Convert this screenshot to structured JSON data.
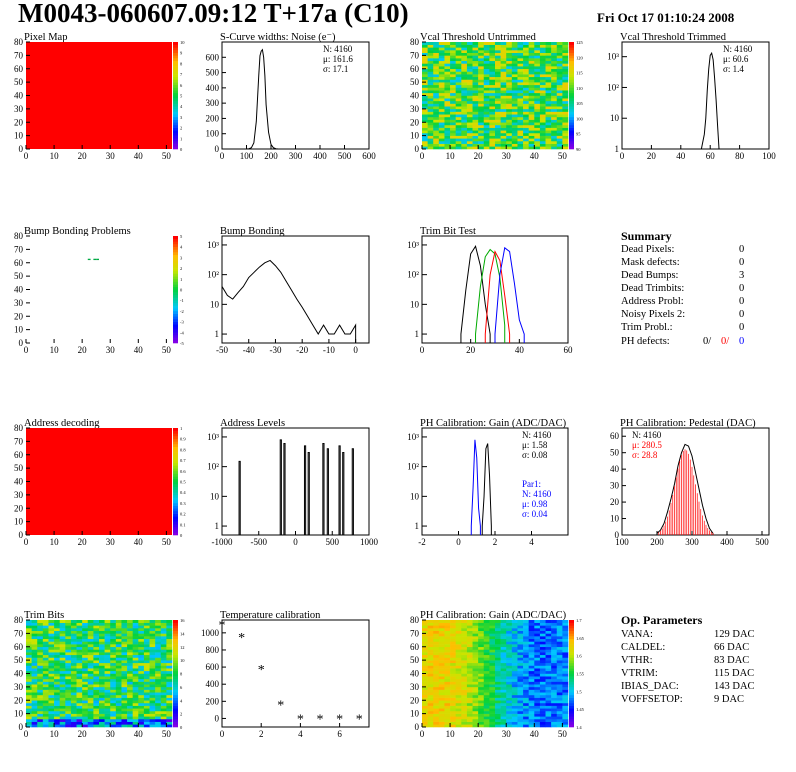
{
  "header": {
    "title": "M0043-060607.09:12 T+17a (C10)",
    "date": "Fri Oct 17 01:10:24 2008"
  },
  "summary": {
    "title": "Summary",
    "rows": [
      {
        "label": "Dead Pixels:",
        "value": "0"
      },
      {
        "label": "Mask defects:",
        "value": "0"
      },
      {
        "label": "Dead Bumps:",
        "value": "3"
      },
      {
        "label": "Dead Trimbits:",
        "value": "0"
      },
      {
        "label": "Address Probl:",
        "value": "0"
      },
      {
        "label": "Noisy Pixels 2:",
        "value": "0"
      },
      {
        "label": "Trim Probl.:",
        "value": "0"
      }
    ],
    "ph_label": "PH defects:",
    "ph_values": [
      "0/",
      "0/",
      "0"
    ]
  },
  "op_parameters": {
    "title": "Op. Parameters",
    "rows": [
      {
        "label": "VANA:",
        "value": "129 DAC"
      },
      {
        "label": "CALDEL:",
        "value": "66 DAC"
      },
      {
        "label": "VTHR:",
        "value": "83 DAC"
      },
      {
        "label": "VTRIM:",
        "value": "115 DAC"
      },
      {
        "label": "IBIAS_DAC:",
        "value": "143 DAC"
      },
      {
        "label": "VOFFSETOP:",
        "value": "9 DAC"
      }
    ]
  },
  "chart_data": [
    {
      "id": "pixel-map",
      "type": "heatmap",
      "title": "Pixel Map",
      "pattern": "uniform",
      "fill": "#ff0000",
      "xlim": [
        0,
        52
      ],
      "ylim": [
        0,
        80
      ],
      "xticks": [
        0,
        10,
        20,
        30,
        40,
        50
      ],
      "yticks": [
        0,
        10,
        20,
        30,
        40,
        50,
        60,
        70,
        80
      ],
      "zticks": [
        "0",
        "1",
        "2",
        "3",
        "4",
        "5",
        "6",
        "7",
        "8",
        "9",
        "10"
      ],
      "palette": "root"
    },
    {
      "id": "scurve",
      "type": "bar",
      "title": "S-Curve widths: Noise (e⁻)",
      "xlim": [
        0,
        600
      ],
      "ylim": [
        0,
        700
      ],
      "xticks": [
        0,
        100,
        200,
        300,
        400,
        500,
        600
      ],
      "yticks": [
        0,
        100,
        200,
        300,
        400,
        500,
        600
      ],
      "ylog": false,
      "stats": [
        {
          "text": "N: 4160",
          "color": "#000"
        },
        {
          "text": "μ: 161.6",
          "color": "#000"
        },
        {
          "text": "σ: 17.1",
          "color": "#000"
        }
      ],
      "series": [
        {
          "color": "#000",
          "points": [
            [
              100,
              0
            ],
            [
              110,
              2
            ],
            [
              120,
              8
            ],
            [
              130,
              40
            ],
            [
              140,
              180
            ],
            [
              150,
              480
            ],
            [
              155,
              610
            ],
            [
              160,
              640
            ],
            [
              165,
              650
            ],
            [
              170,
              600
            ],
            [
              175,
              480
            ],
            [
              180,
              290
            ],
            [
              190,
              110
            ],
            [
              200,
              30
            ],
            [
              210,
              8
            ],
            [
              220,
              2
            ],
            [
              230,
              0
            ]
          ]
        }
      ]
    },
    {
      "id": "vcal-untrimmed",
      "type": "heatmap",
      "title": "Vcal Threshold Untrimmed",
      "pattern": "noise",
      "xlim": [
        0,
        52
      ],
      "ylim": [
        0,
        80
      ],
      "xticks": [
        0,
        10,
        20,
        30,
        40,
        50
      ],
      "yticks": [
        0,
        10,
        20,
        30,
        40,
        50,
        60,
        70,
        80
      ],
      "zticks": [
        "90",
        "95",
        "100",
        "105",
        "110",
        "115",
        "120",
        "125"
      ],
      "palette": "root"
    },
    {
      "id": "vcal-trimmed",
      "type": "bar",
      "title": "Vcal Threshold Trimmed",
      "xlim": [
        0,
        100
      ],
      "ylim": [
        1,
        3000
      ],
      "xticks": [
        0,
        20,
        40,
        60,
        80,
        100
      ],
      "ylog": true,
      "yticklabels": [
        "1",
        "10",
        "10²",
        "10³"
      ],
      "stats": [
        {
          "text": "N: 4160",
          "color": "#000"
        },
        {
          "text": "μ: 60.6",
          "color": "#000"
        },
        {
          "text": "σ:  1.4",
          "color": "#000"
        }
      ],
      "series": [
        {
          "color": "#000",
          "points": [
            [
              54,
              1
            ],
            [
              56,
              3
            ],
            [
              57,
              10
            ],
            [
              58,
              80
            ],
            [
              59,
              400
            ],
            [
              60,
              1100
            ],
            [
              61,
              1300
            ],
            [
              62,
              800
            ],
            [
              63,
              200
            ],
            [
              64,
              40
            ],
            [
              65,
              6
            ],
            [
              66,
              1
            ]
          ]
        }
      ]
    },
    {
      "id": "bump-problems",
      "type": "heatmap",
      "title": "Bump Bonding Problems",
      "pattern": "sparse",
      "xlim": [
        0,
        52
      ],
      "ylim": [
        0,
        80
      ],
      "xticks": [
        0,
        10,
        20,
        30,
        40,
        50
      ],
      "yticks": [
        0,
        10,
        20,
        30,
        40,
        50,
        60,
        70,
        80
      ],
      "zticks": [
        "-5",
        "-4",
        "-3",
        "-2",
        "-1",
        "0",
        "1",
        "2",
        "3",
        "4",
        "5"
      ],
      "palette": "root"
    },
    {
      "id": "bump-bonding",
      "type": "bar",
      "title": "Bump Bonding",
      "xlim": [
        -50,
        5
      ],
      "ylim": [
        0.5,
        2000
      ],
      "xticks": [
        -50,
        -40,
        -30,
        -20,
        -10,
        0
      ],
      "ylog": true,
      "yticklabels": [
        "1",
        "10",
        "10²",
        "10³"
      ],
      "series": [
        {
          "color": "#000",
          "points": [
            [
              -50,
              40
            ],
            [
              -48,
              20
            ],
            [
              -46,
              15
            ],
            [
              -44,
              25
            ],
            [
              -42,
              40
            ],
            [
              -40,
              80
            ],
            [
              -38,
              120
            ],
            [
              -36,
              180
            ],
            [
              -34,
              250
            ],
            [
              -32,
              300
            ],
            [
              -30,
              200
            ],
            [
              -28,
              120
            ],
            [
              -26,
              60
            ],
            [
              -24,
              30
            ],
            [
              -22,
              15
            ],
            [
              -20,
              8
            ],
            [
              -18,
              4
            ],
            [
              -16,
              2
            ],
            [
              -14,
              1
            ],
            [
              -12,
              2
            ],
            [
              -10,
              1
            ],
            [
              -8,
              1
            ],
            [
              -6,
              2
            ],
            [
              -4,
              1
            ],
            [
              -2,
              1
            ],
            [
              0,
              2
            ]
          ]
        }
      ]
    },
    {
      "id": "trim-bit-test",
      "type": "bar",
      "title": "Trim Bit Test",
      "xlim": [
        0,
        60
      ],
      "ylim": [
        0.5,
        2000
      ],
      "xticks": [
        0,
        20,
        40,
        60
      ],
      "ylog": true,
      "yticklabels": [
        "1",
        "10",
        "10²",
        "10³"
      ],
      "series": [
        {
          "color": "#000",
          "points": [
            [
              16,
              1
            ],
            [
              18,
              30
            ],
            [
              20,
              500
            ],
            [
              22,
              900
            ],
            [
              24,
              200
            ],
            [
              26,
              10
            ],
            [
              28,
              1
            ]
          ]
        },
        {
          "color": "#00aa00",
          "points": [
            [
              22,
              1
            ],
            [
              24,
              40
            ],
            [
              26,
              400
            ],
            [
              28,
              700
            ],
            [
              30,
              500
            ],
            [
              32,
              80
            ],
            [
              34,
              2
            ]
          ]
        },
        {
          "color": "#ff0000",
          "points": [
            [
              26,
              1
            ],
            [
              28,
              100
            ],
            [
              30,
              600
            ],
            [
              32,
              300
            ],
            [
              34,
              20
            ],
            [
              36,
              1
            ]
          ]
        },
        {
          "color": "#0000ff",
          "points": [
            [
              30,
              1
            ],
            [
              32,
              100
            ],
            [
              34,
              800
            ],
            [
              36,
              600
            ],
            [
              38,
              50
            ],
            [
              40,
              3
            ],
            [
              42,
              1
            ]
          ]
        }
      ]
    },
    {
      "id": "address-decoding",
      "type": "heatmap",
      "title": "Address decoding",
      "pattern": "uniform",
      "fill": "#ff0000",
      "xlim": [
        0,
        52
      ],
      "ylim": [
        0,
        80
      ],
      "xticks": [
        0,
        10,
        20,
        30,
        40,
        50
      ],
      "yticks": [
        0,
        10,
        20,
        30,
        40,
        50,
        60,
        70,
        80
      ],
      "zticks": [
        "0",
        "0.1",
        "0.2",
        "0.3",
        "0.4",
        "0.5",
        "0.6",
        "0.7",
        "0.8",
        "0.9",
        "1"
      ],
      "palette": "root"
    },
    {
      "id": "address-levels",
      "type": "bar",
      "title": "Address Levels",
      "xlim": [
        -1000,
        1000
      ],
      "ylim": [
        0.5,
        2000
      ],
      "xticks": [
        -1000,
        -500,
        0,
        500,
        1000
      ],
      "ylog": true,
      "yticklabels": [
        "1",
        "10",
        "10²",
        "10³"
      ],
      "series": [
        {
          "color": "#000",
          "spikes": [
            [
              -760,
              150
            ],
            [
              -200,
              800
            ],
            [
              -150,
              600
            ],
            [
              130,
              500
            ],
            [
              180,
              300
            ],
            [
              380,
              600
            ],
            [
              440,
              400
            ],
            [
              600,
              500
            ],
            [
              650,
              300
            ],
            [
              780,
              400
            ]
          ]
        }
      ]
    },
    {
      "id": "ph-gain",
      "type": "bar",
      "title": "PH Calibration: Gain (ADC/DAC)",
      "xlim": [
        -2,
        6
      ],
      "ylim": [
        0.5,
        2000
      ],
      "xticks": [
        -2,
        0,
        2,
        4
      ],
      "ylog": true,
      "yticklabels": [
        "1",
        "10",
        "10²",
        "10³"
      ],
      "stats": [
        {
          "text": "N: 4160",
          "color": "#000"
        },
        {
          "text": "μ: 1.58",
          "color": "#000"
        },
        {
          "text": "σ: 0.08",
          "color": "#000"
        }
      ],
      "stats2": [
        {
          "text": "Par1:",
          "color": "#0000ff"
        },
        {
          "text": "N: 4160",
          "color": "#0000ff"
        },
        {
          "text": "μ: 0.98",
          "color": "#0000ff"
        },
        {
          "text": "σ: 0.04",
          "color": "#0000ff"
        }
      ],
      "series": [
        {
          "color": "#0000ff",
          "points": [
            [
              0.7,
              1
            ],
            [
              0.8,
              20
            ],
            [
              0.9,
              800
            ],
            [
              1.0,
              200
            ],
            [
              1.1,
              4
            ],
            [
              1.2,
              1
            ]
          ]
        },
        {
          "color": "#000",
          "points": [
            [
              1.3,
              1
            ],
            [
              1.4,
              10
            ],
            [
              1.5,
              400
            ],
            [
              1.6,
              600
            ],
            [
              1.7,
              50
            ],
            [
              1.8,
              1
            ]
          ]
        }
      ]
    },
    {
      "id": "ph-pedestal",
      "type": "bar",
      "title": "PH Calibration: Pedestal (DAC)",
      "xlim": [
        100,
        520
      ],
      "ylim": [
        0,
        65
      ],
      "xticks": [
        100,
        200,
        300,
        400,
        500
      ],
      "yticks": [
        0,
        10,
        20,
        30,
        40,
        50,
        60
      ],
      "ylog": false,
      "stats": [
        {
          "text": "N: 4160",
          "color": "#000"
        },
        {
          "text": "μ: 280.5",
          "color": "#ff0000"
        },
        {
          "text": "σ: 28.8",
          "color": "#ff0000"
        }
      ],
      "series": [
        {
          "color": "#000",
          "points": [
            [
              200,
              1
            ],
            [
              210,
              3
            ],
            [
              220,
              7
            ],
            [
              230,
              14
            ],
            [
              240,
              22
            ],
            [
              250,
              31
            ],
            [
              260,
              42
            ],
            [
              270,
              50
            ],
            [
              280,
              55
            ],
            [
              290,
              54
            ],
            [
              300,
              48
            ],
            [
              310,
              38
            ],
            [
              320,
              28
            ],
            [
              330,
              18
            ],
            [
              340,
              10
            ],
            [
              350,
              4
            ],
            [
              360,
              1
            ]
          ]
        }
      ],
      "fit": {
        "color": "#ff0000",
        "mu": 280.5,
        "sigma": 28.8,
        "amp": 52
      }
    },
    {
      "id": "trim-bits",
      "type": "heatmap",
      "title": "Trim Bits",
      "pattern": "trim",
      "xlim": [
        0,
        52
      ],
      "ylim": [
        0,
        80
      ],
      "xticks": [
        0,
        10,
        20,
        30,
        40,
        50
      ],
      "yticks": [
        0,
        10,
        20,
        30,
        40,
        50,
        60,
        70,
        80
      ],
      "zticks": [
        "0",
        "2",
        "4",
        "6",
        "8",
        "10",
        "12",
        "14",
        "16"
      ],
      "palette": "root"
    },
    {
      "id": "temperature",
      "type": "scatter",
      "title": "Temperature calibration",
      "xlim": [
        0,
        7.5
      ],
      "ylim": [
        -100,
        1150
      ],
      "xticks": [
        0,
        2,
        4,
        6
      ],
      "yticks": [
        0,
        200,
        400,
        600,
        800,
        1000
      ],
      "ylog": false,
      "series": [
        {
          "color": "#000",
          "marker": "*",
          "x": [
            0,
            1,
            2,
            3,
            4,
            5,
            6,
            7
          ],
          "y": [
            1100,
            950,
            580,
            160,
            0,
            0,
            0,
            0
          ]
        }
      ]
    },
    {
      "id": "ph-gain-map",
      "type": "heatmap",
      "title": "PH Calibration: Gain (ADC/DAC)",
      "pattern": "gain",
      "xlim": [
        0,
        52
      ],
      "ylim": [
        0,
        80
      ],
      "xticks": [
        0,
        10,
        20,
        30,
        40,
        50
      ],
      "yticks": [
        0,
        10,
        20,
        30,
        40,
        50,
        60,
        70,
        80
      ],
      "zticks": [
        "1.4",
        "1.45",
        "1.5",
        "1.55",
        "1.6",
        "1.65",
        "1.7"
      ],
      "palette": "root"
    }
  ]
}
